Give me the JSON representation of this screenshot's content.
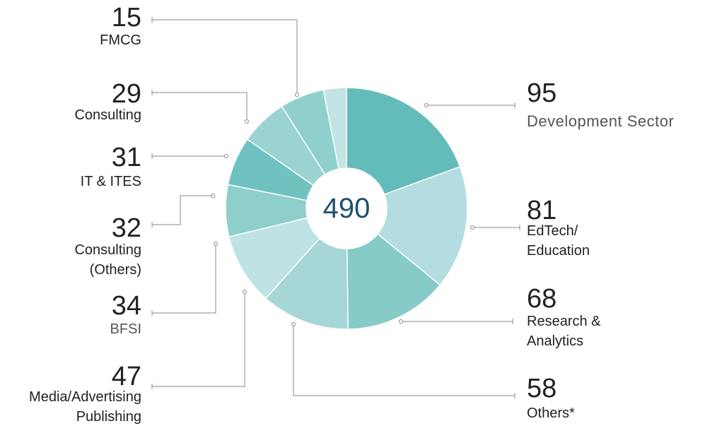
{
  "chart_data": {
    "type": "donut",
    "total": 490,
    "categories": [
      "Development Sector",
      "EdTech/\nEducation",
      "Research &\nAnalytics",
      "Others*",
      "Media/Advertising\nPublishing",
      "BFSI",
      "Consulting\n(Others)",
      "IT & ITES",
      "Consulting",
      "FMCG"
    ],
    "values": [
      95,
      81,
      68,
      58,
      47,
      34,
      32,
      31,
      29,
      15
    ],
    "colors": [
      "#64bcba",
      "#b3dde0",
      "#86cbc8",
      "#a6d6d5",
      "#bfe2e5",
      "#8ecfcc",
      "#70c2c0",
      "#9bd3d1",
      "#8fd0cd",
      "#c3e4e6"
    ]
  }
}
